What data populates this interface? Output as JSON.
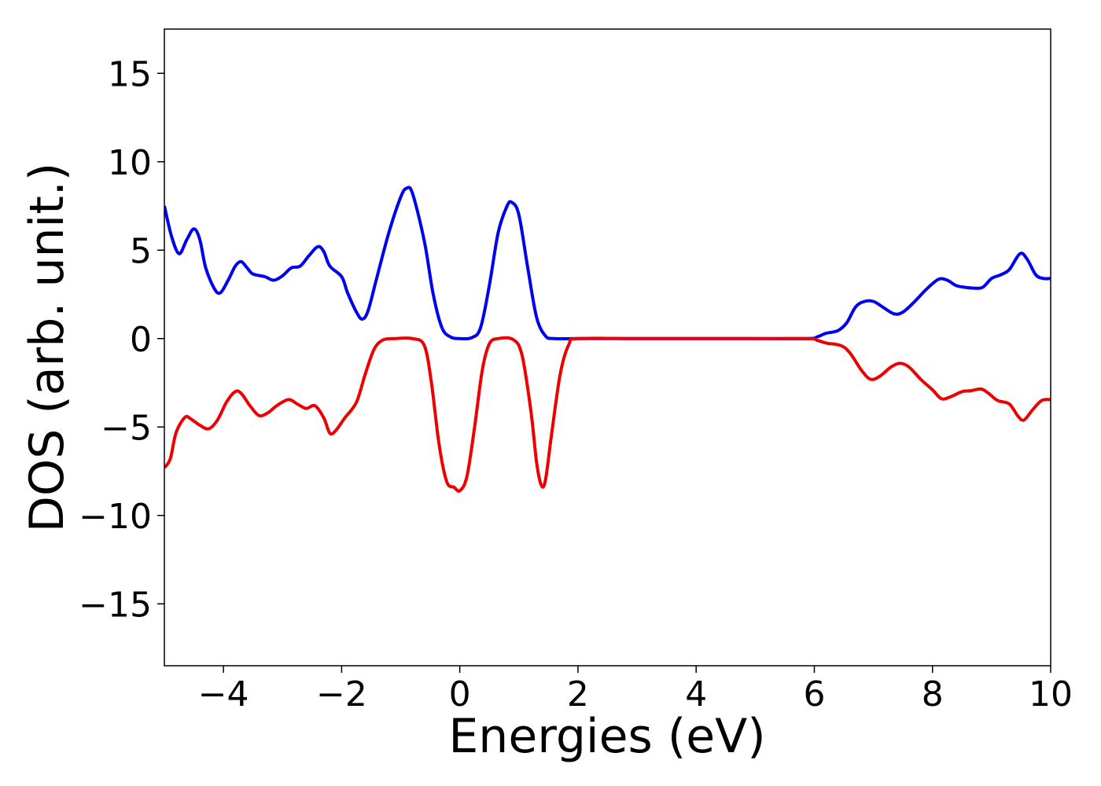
{
  "chart_data": {
    "type": "line",
    "title": "",
    "xlabel": "Energies (eV)",
    "ylabel": "DOS (arb. unit.)",
    "xlim": [
      -5,
      10
    ],
    "ylim": [
      -18.5,
      17.5
    ],
    "xticks": [
      -4,
      -2,
      0,
      2,
      4,
      6,
      8,
      10
    ],
    "yticks": [
      -15,
      -10,
      -5,
      0,
      5,
      10,
      15
    ],
    "xtick_labels": [
      "−4",
      "−2",
      "0",
      "2",
      "4",
      "6",
      "8",
      "10"
    ],
    "ytick_labels": [
      "−15",
      "−10",
      "−5",
      "0",
      "5",
      "10",
      "15"
    ],
    "grid": false,
    "legend": "none",
    "series": [
      {
        "color": "#0000ee",
        "points": [
          [
            -5.0,
            7.5
          ],
          [
            -4.88,
            5.8
          ],
          [
            -4.75,
            4.8
          ],
          [
            -4.62,
            5.6
          ],
          [
            -4.5,
            6.2
          ],
          [
            -4.4,
            5.6
          ],
          [
            -4.3,
            4.0
          ],
          [
            -4.15,
            2.8
          ],
          [
            -4.05,
            2.6
          ],
          [
            -3.92,
            3.3
          ],
          [
            -3.8,
            4.1
          ],
          [
            -3.7,
            4.35
          ],
          [
            -3.6,
            4.0
          ],
          [
            -3.5,
            3.65
          ],
          [
            -3.3,
            3.5
          ],
          [
            -3.15,
            3.3
          ],
          [
            -3.0,
            3.55
          ],
          [
            -2.85,
            4.0
          ],
          [
            -2.7,
            4.1
          ],
          [
            -2.55,
            4.7
          ],
          [
            -2.4,
            5.2
          ],
          [
            -2.3,
            4.9
          ],
          [
            -2.2,
            4.1
          ],
          [
            -2.0,
            3.5
          ],
          [
            -1.9,
            2.6
          ],
          [
            -1.75,
            1.5
          ],
          [
            -1.65,
            1.1
          ],
          [
            -1.55,
            1.6
          ],
          [
            -1.4,
            3.5
          ],
          [
            -1.2,
            6.0
          ],
          [
            -1.0,
            8.0
          ],
          [
            -0.9,
            8.5
          ],
          [
            -0.8,
            8.2
          ],
          [
            -0.6,
            5.5
          ],
          [
            -0.45,
            2.5
          ],
          [
            -0.3,
            0.6
          ],
          [
            -0.15,
            0.08
          ],
          [
            0.0,
            0.0
          ],
          [
            0.2,
            0.05
          ],
          [
            0.35,
            0.6
          ],
          [
            0.5,
            3.0
          ],
          [
            0.65,
            6.0
          ],
          [
            0.8,
            7.5
          ],
          [
            0.88,
            7.7
          ],
          [
            1.0,
            7.0
          ],
          [
            1.15,
            4.0
          ],
          [
            1.3,
            1.2
          ],
          [
            1.45,
            0.15
          ],
          [
            1.6,
            0.0
          ],
          [
            2.0,
            0.0
          ],
          [
            3.0,
            0.0
          ],
          [
            4.0,
            0.0
          ],
          [
            5.0,
            0.0
          ],
          [
            5.9,
            0.0
          ],
          [
            6.05,
            0.1
          ],
          [
            6.2,
            0.3
          ],
          [
            6.4,
            0.45
          ],
          [
            6.55,
            0.9
          ],
          [
            6.7,
            1.8
          ],
          [
            6.85,
            2.1
          ],
          [
            7.0,
            2.1
          ],
          [
            7.15,
            1.8
          ],
          [
            7.35,
            1.4
          ],
          [
            7.5,
            1.5
          ],
          [
            7.7,
            2.1
          ],
          [
            7.9,
            2.8
          ],
          [
            8.1,
            3.35
          ],
          [
            8.25,
            3.3
          ],
          [
            8.4,
            3.0
          ],
          [
            8.55,
            2.9
          ],
          [
            8.7,
            2.85
          ],
          [
            8.85,
            2.9
          ],
          [
            9.0,
            3.4
          ],
          [
            9.15,
            3.6
          ],
          [
            9.3,
            3.9
          ],
          [
            9.48,
            4.8
          ],
          [
            9.6,
            4.5
          ],
          [
            9.75,
            3.6
          ],
          [
            9.88,
            3.4
          ],
          [
            10.0,
            3.4
          ]
        ]
      },
      {
        "color": "#ee0000",
        "points": [
          [
            -5.0,
            -7.3
          ],
          [
            -4.9,
            -6.8
          ],
          [
            -4.8,
            -5.3
          ],
          [
            -4.65,
            -4.45
          ],
          [
            -4.55,
            -4.55
          ],
          [
            -4.4,
            -4.9
          ],
          [
            -4.25,
            -5.1
          ],
          [
            -4.1,
            -4.6
          ],
          [
            -3.95,
            -3.6
          ],
          [
            -3.8,
            -3.0
          ],
          [
            -3.7,
            -3.1
          ],
          [
            -3.55,
            -3.8
          ],
          [
            -3.4,
            -4.35
          ],
          [
            -3.25,
            -4.2
          ],
          [
            -3.1,
            -3.8
          ],
          [
            -2.9,
            -3.45
          ],
          [
            -2.75,
            -3.7
          ],
          [
            -2.6,
            -3.95
          ],
          [
            -2.45,
            -3.8
          ],
          [
            -2.3,
            -4.5
          ],
          [
            -2.2,
            -5.35
          ],
          [
            -2.1,
            -5.2
          ],
          [
            -1.95,
            -4.5
          ],
          [
            -1.75,
            -3.6
          ],
          [
            -1.6,
            -2.0
          ],
          [
            -1.45,
            -0.6
          ],
          [
            -1.3,
            -0.08
          ],
          [
            -1.1,
            0.0
          ],
          [
            -0.8,
            0.0
          ],
          [
            -0.6,
            -0.4
          ],
          [
            -0.48,
            -2.5
          ],
          [
            -0.35,
            -6.0
          ],
          [
            -0.22,
            -8.1
          ],
          [
            -0.1,
            -8.4
          ],
          [
            0.0,
            -8.6
          ],
          [
            0.12,
            -7.8
          ],
          [
            0.25,
            -5.0
          ],
          [
            0.38,
            -1.8
          ],
          [
            0.5,
            -0.3
          ],
          [
            0.65,
            0.0
          ],
          [
            0.9,
            -0.05
          ],
          [
            1.05,
            -0.9
          ],
          [
            1.2,
            -4.0
          ],
          [
            1.3,
            -7.0
          ],
          [
            1.38,
            -8.3
          ],
          [
            1.45,
            -8.0
          ],
          [
            1.55,
            -5.5
          ],
          [
            1.7,
            -2.0
          ],
          [
            1.85,
            -0.3
          ],
          [
            2.0,
            0.0
          ],
          [
            3.0,
            0.0
          ],
          [
            4.0,
            0.0
          ],
          [
            5.0,
            0.0
          ],
          [
            5.9,
            0.0
          ],
          [
            6.05,
            -0.1
          ],
          [
            6.2,
            -0.25
          ],
          [
            6.45,
            -0.4
          ],
          [
            6.6,
            -0.8
          ],
          [
            6.8,
            -1.8
          ],
          [
            6.95,
            -2.3
          ],
          [
            7.1,
            -2.15
          ],
          [
            7.3,
            -1.6
          ],
          [
            7.45,
            -1.4
          ],
          [
            7.6,
            -1.6
          ],
          [
            7.8,
            -2.3
          ],
          [
            8.0,
            -2.9
          ],
          [
            8.15,
            -3.4
          ],
          [
            8.3,
            -3.3
          ],
          [
            8.5,
            -3.0
          ],
          [
            8.65,
            -2.95
          ],
          [
            8.82,
            -2.85
          ],
          [
            8.95,
            -3.1
          ],
          [
            9.1,
            -3.5
          ],
          [
            9.3,
            -3.7
          ],
          [
            9.45,
            -4.4
          ],
          [
            9.55,
            -4.6
          ],
          [
            9.7,
            -4.0
          ],
          [
            9.85,
            -3.5
          ],
          [
            10.0,
            -3.45
          ]
        ]
      }
    ]
  }
}
